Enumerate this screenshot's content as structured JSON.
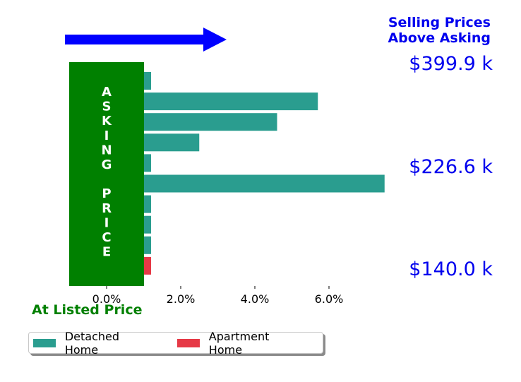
{
  "chart_data": {
    "type": "bar",
    "orientation": "horizontal",
    "title": "",
    "xlabel": "",
    "ylabel": "",
    "xlim": [
      -1.0,
      7.5
    ],
    "x_ticks": [
      0,
      2,
      4,
      6
    ],
    "x_tick_labels": [
      "0.0%",
      "2.0%",
      "4.0%",
      "6.0%"
    ],
    "grid": false,
    "legend_position": "bottom-left",
    "bars": [
      {
        "series": "Detached Home",
        "value": 1.2
      },
      {
        "series": "Detached Home",
        "value": 5.7
      },
      {
        "series": "Detached Home",
        "value": 4.6
      },
      {
        "series": "Detached Home",
        "value": 2.5
      },
      {
        "series": "Detached Home",
        "value": 1.2
      },
      {
        "series": "Detached Home",
        "value": 7.5
      },
      {
        "series": "Detached Home",
        "value": 1.2
      },
      {
        "series": "Detached Home",
        "value": 1.2
      },
      {
        "series": "Detached Home",
        "value": 1.2
      },
      {
        "series": "Apartment Home",
        "value": 1.2
      }
    ],
    "series": [
      {
        "name": "Detached Home",
        "color": "#2a9d8f"
      },
      {
        "name": "Apartment Home",
        "color": "#e63946"
      }
    ],
    "annotations": {
      "top_label_lines": [
        "Selling Prices",
        "Above Asking"
      ],
      "price_labels": [
        "$399.9 k",
        "$226.6 k",
        "$140.0 k"
      ],
      "asking_box_letters": [
        "A",
        "S",
        "K",
        "I",
        "N",
        "G",
        "",
        "P",
        "R",
        "I",
        "C",
        "E"
      ],
      "bottom_label": "At Listed Price"
    },
    "colors": {
      "arrow": "#0000ff",
      "asking_box": "#008000",
      "annotation_blue": "#0000ee",
      "annotation_green": "#008000"
    },
    "icons": {
      "arrow": "right-arrow-icon"
    }
  }
}
